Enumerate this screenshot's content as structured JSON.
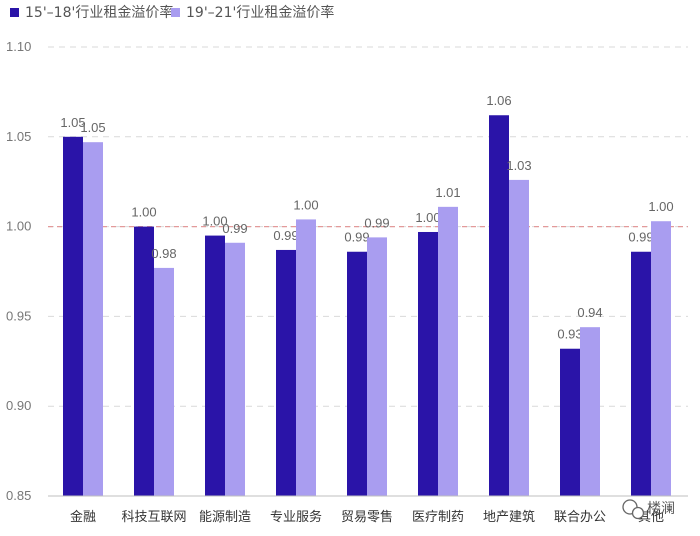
{
  "chart_data": {
    "type": "bar",
    "categories": [
      "金融",
      "科技互联网",
      "能源制造",
      "专业服务",
      "贸易零售",
      "医疗制药",
      "地产建筑",
      "联合办公",
      "其他"
    ],
    "series": [
      {
        "name": "15'–18'行业租金溢价率",
        "color": "#2a14a8",
        "values": [
          1.05,
          1.0,
          0.995,
          0.987,
          0.986,
          0.997,
          1.062,
          0.932,
          0.986
        ],
        "labels": [
          "1.05",
          "1.00",
          "1.00",
          "0.99",
          "0.99",
          "1.00",
          "1.06",
          "0.93",
          "0.99"
        ]
      },
      {
        "name": "19'–21'行业租金溢价率",
        "color": "#a99df0",
        "values": [
          1.047,
          0.977,
          0.991,
          1.004,
          0.994,
          1.011,
          1.026,
          0.944,
          1.003
        ],
        "labels": [
          "1.05",
          "0.98",
          "0.99",
          "1.00",
          "0.99",
          "1.01",
          "1.03",
          "0.94",
          "1.00"
        ]
      }
    ],
    "yticks": [
      "0.85",
      "0.90",
      "0.95",
      "1.00",
      "1.05",
      "1.10"
    ],
    "ylim": [
      0.85,
      1.1
    ],
    "reference_line": {
      "value": 1.0,
      "color": "#e39a9a",
      "style": "dashed"
    },
    "grid": "horizontal-dashed",
    "legend_position": "top-left",
    "title": "",
    "xlabel": "",
    "ylabel": ""
  },
  "watermark": {
    "icon": "wechat-icon",
    "text": "楼澜"
  }
}
